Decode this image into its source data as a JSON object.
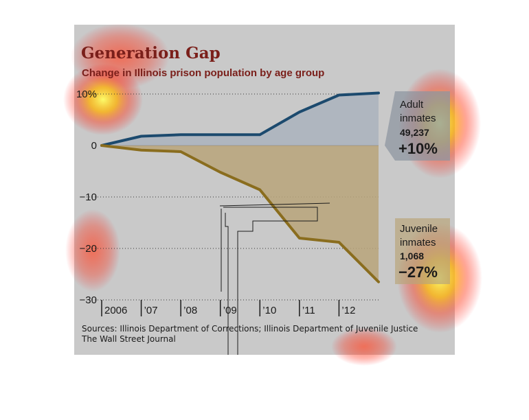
{
  "colors": {
    "background": "#c9c9c9",
    "adult_line": "#1c4a6e",
    "adult_fill": "#aab3bd",
    "juvenile_line": "#8a6d1e",
    "juvenile_fill": "#b9a57a",
    "title": "#7a1f1a"
  },
  "chart_data": {
    "type": "line",
    "title": "Generation Gap",
    "subtitle": "Change in Illinois prison population by age group",
    "x": [
      2006,
      2007,
      2008,
      2009,
      2010,
      2011,
      2012,
      2013
    ],
    "x_tick_labels": [
      "2006",
      "’07",
      "’08",
      "’09",
      "’10",
      "’11",
      "’12"
    ],
    "y_tick_labels": [
      "10%",
      "0",
      "−10",
      "−20",
      "−30"
    ],
    "y_ticks": [
      10,
      0,
      -10,
      -20,
      -30
    ],
    "ylim": [
      -30,
      10
    ],
    "grid": "dotted horizontal",
    "series": [
      {
        "name": "Adult inmates",
        "x": [
          2006,
          2007,
          2008,
          2009,
          2010,
          2011,
          2012,
          2013
        ],
        "values": [
          0,
          1.8,
          2.1,
          2.1,
          2.1,
          6.5,
          9.8,
          10.2
        ]
      },
      {
        "name": "Juvenile inmates",
        "x": [
          2006,
          2007,
          2008,
          2009,
          2010,
          2011,
          2012,
          2013
        ],
        "values": [
          0,
          -0.9,
          -1.2,
          -5.2,
          -8.6,
          -18,
          -18.8,
          -26.5
        ]
      }
    ],
    "annotations": [
      {
        "series": "Adult inmates",
        "label_line1": "Adult",
        "label_line2": "inmates",
        "count": "49,237",
        "change": "+10%"
      },
      {
        "series": "Juvenile inmates",
        "label_line1": "Juvenile",
        "label_line2": "inmates",
        "count": "1,068",
        "change": "−27%"
      }
    ],
    "source_line1": "Sources: Illinois Department of Corrections; Illinois Department of Juvenile Justice",
    "source_line2": "The Wall Street Journal"
  }
}
